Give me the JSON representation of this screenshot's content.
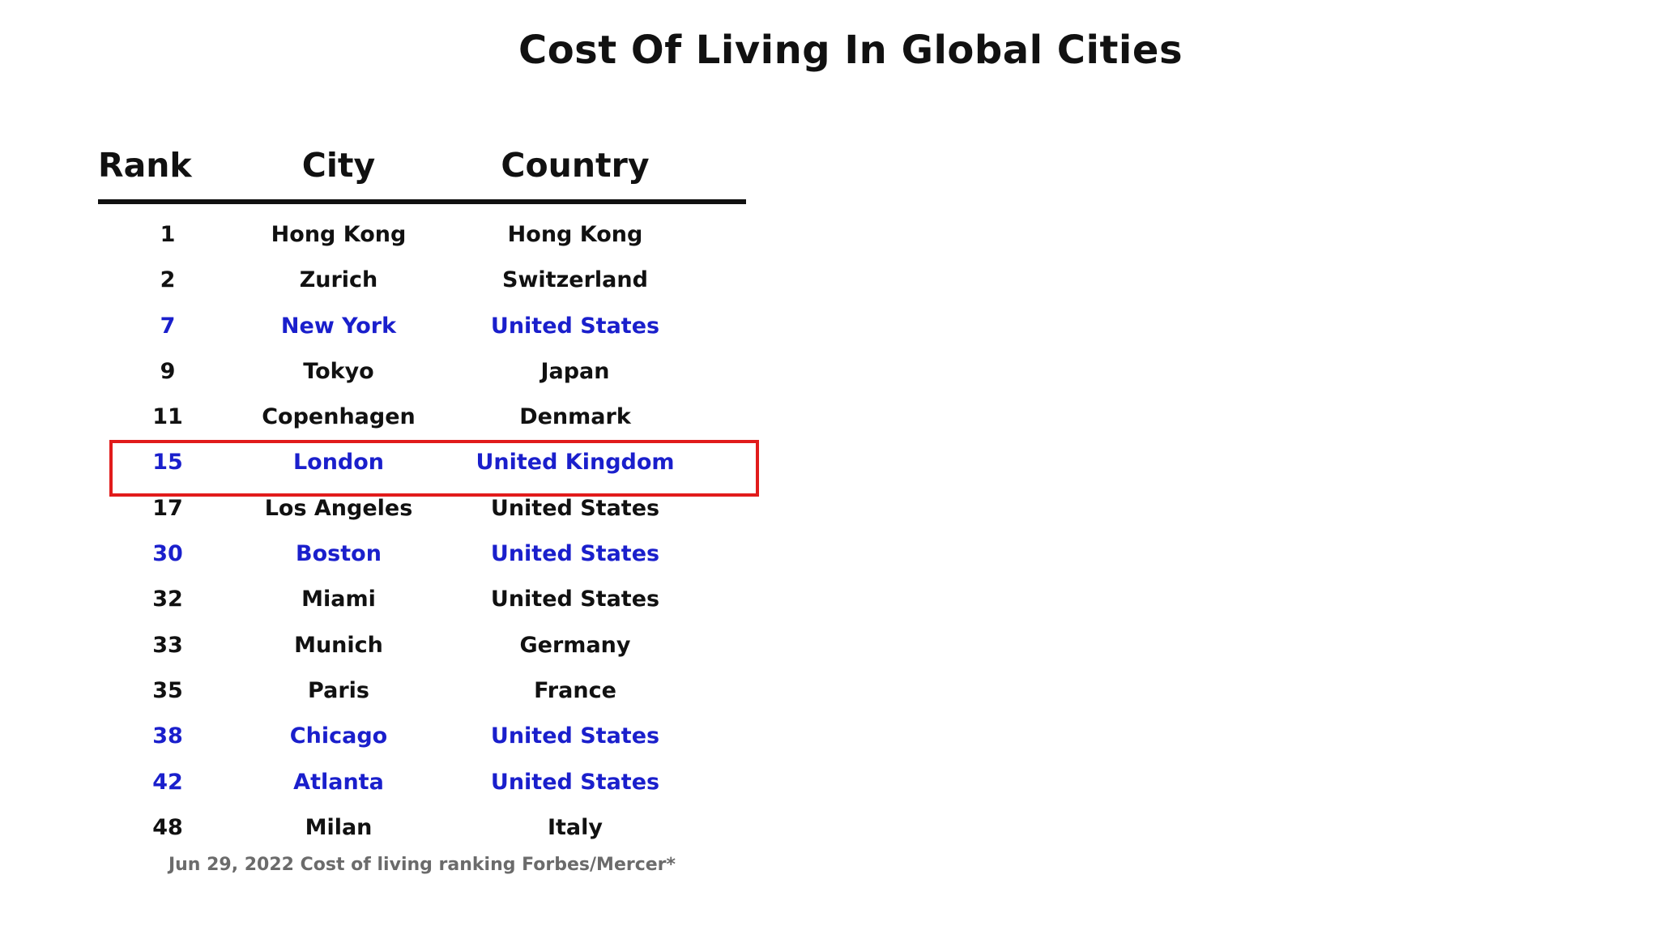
{
  "title": "Cost Of Living In Global Cities",
  "columns": {
    "rank": "Rank",
    "city": "City",
    "country": "Country"
  },
  "rows": [
    {
      "rank": "1",
      "city": "Hong Kong",
      "country": "Hong Kong",
      "highlighted": false
    },
    {
      "rank": "2",
      "city": "Zurich",
      "country": "Switzerland",
      "highlighted": false
    },
    {
      "rank": "7",
      "city": "New York",
      "country": "United States",
      "highlighted": true
    },
    {
      "rank": "9",
      "city": "Tokyo",
      "country": "Japan",
      "highlighted": false
    },
    {
      "rank": "11",
      "city": "Copenhagen",
      "country": "Denmark",
      "highlighted": false
    },
    {
      "rank": "15",
      "city": "London",
      "country": "United Kingdom",
      "highlighted": true,
      "boxed": true
    },
    {
      "rank": "17",
      "city": "Los Angeles",
      "country": "United States",
      "highlighted": false
    },
    {
      "rank": "30",
      "city": "Boston",
      "country": "United States",
      "highlighted": true
    },
    {
      "rank": "32",
      "city": "Miami",
      "country": "United States",
      "highlighted": false
    },
    {
      "rank": "33",
      "city": "Munich",
      "country": "Germany",
      "highlighted": false
    },
    {
      "rank": "35",
      "city": "Paris",
      "country": "France",
      "highlighted": false
    },
    {
      "rank": "38",
      "city": "Chicago",
      "country": "United States",
      "highlighted": true
    },
    {
      "rank": "42",
      "city": "Atlanta",
      "country": "United States",
      "highlighted": true
    },
    {
      "rank": "48",
      "city": "Milan",
      "country": "Italy",
      "highlighted": false
    }
  ],
  "footnote": "Jun 29, 2022 Cost of living ranking Forbes/Mercer*",
  "colors": {
    "highlight_text": "#1a1fcc",
    "box_border": "#e11b1b",
    "text": "#111111",
    "footnote": "#6b6b6b"
  }
}
